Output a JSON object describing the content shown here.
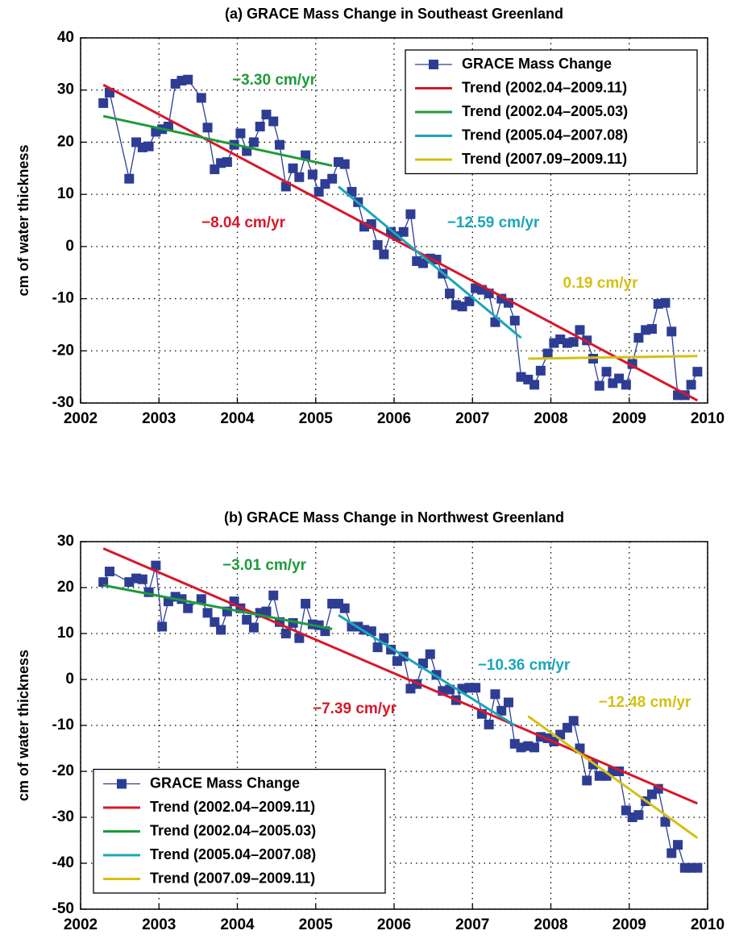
{
  "chart_data": [
    {
      "type": "line",
      "title": "(a) GRACE Mass Change in Southeast Greenland",
      "ylabel": "cm of water thickness",
      "xlim": [
        2002,
        2010
      ],
      "xticks": [
        2002,
        2003,
        2004,
        2005,
        2006,
        2007,
        2008,
        2009,
        2010
      ],
      "ylim": [
        -30,
        40
      ],
      "yticks": [
        -30,
        -20,
        -10,
        0,
        10,
        20,
        30,
        40
      ],
      "grid": true,
      "legend": "upper right",
      "series": [
        {
          "name": "GRACE Mass Change",
          "color": "#2e3d94",
          "marker": "square",
          "x": [
            2002.29,
            2002.37,
            2002.62,
            2002.71,
            2002.79,
            2002.87,
            2002.96,
            2003.04,
            2003.12,
            2003.21,
            2003.29,
            2003.37,
            2003.54,
            2003.62,
            2003.71,
            2003.79,
            2003.87,
            2003.96,
            2004.04,
            2004.12,
            2004.21,
            2004.29,
            2004.37,
            2004.46,
            2004.54,
            2004.62,
            2004.71,
            2004.79,
            2004.87,
            2004.96,
            2005.04,
            2005.12,
            2005.21,
            2005.29,
            2005.37,
            2005.46,
            2005.54,
            2005.62,
            2005.71,
            2005.79,
            2005.87,
            2005.96,
            2006.04,
            2006.12,
            2006.21,
            2006.29,
            2006.37,
            2006.46,
            2006.54,
            2006.62,
            2006.71,
            2006.79,
            2006.87,
            2006.96,
            2007.04,
            2007.12,
            2007.21,
            2007.29,
            2007.37,
            2007.46,
            2007.54,
            2007.62,
            2007.71,
            2007.79,
            2007.87,
            2007.96,
            2008.04,
            2008.12,
            2008.21,
            2008.29,
            2008.37,
            2008.46,
            2008.54,
            2008.62,
            2008.71,
            2008.79,
            2008.87,
            2008.96,
            2009.04,
            2009.12,
            2009.21,
            2009.29,
            2009.37,
            2009.46,
            2009.54,
            2009.62,
            2009.71,
            2009.79,
            2009.87
          ],
          "values": [
            27.5,
            29.5,
            13,
            20,
            19,
            19.2,
            22,
            22.5,
            23,
            31.2,
            31.8,
            32,
            28.5,
            22.8,
            14.8,
            16,
            16.2,
            19.5,
            21.7,
            18.3,
            20,
            23,
            25.3,
            24,
            19.5,
            11.5,
            15,
            13.3,
            17.5,
            13.8,
            10.5,
            12,
            13,
            16.2,
            15.8,
            10.5,
            8.5,
            3.8,
            4.3,
            0.3,
            -1.5,
            2.8,
            2,
            2.8,
            6.2,
            -2.8,
            -3.2,
            -2.3,
            -2.5,
            -5.2,
            -9,
            -11.2,
            -11.5,
            -10.5,
            -8,
            -8.3,
            -9,
            -14.5,
            -10,
            -10.8,
            -14.2,
            -25,
            -25.5,
            -26.5,
            -23.8,
            -20.5,
            -18.5,
            -17.8,
            -18.5,
            -18.3,
            -16,
            -18,
            -21.5,
            -26.7,
            -24,
            -26.2,
            -25.3,
            -26.5,
            -22.5,
            -17.5,
            -16,
            -15.8,
            -11,
            -10.8,
            -16.3,
            -28.5,
            -28.5,
            -26.5,
            -24
          ]
        },
        {
          "name": "Trend (2002.04–2009.11)",
          "color": "#d7182a",
          "x": [
            2002.29,
            2009.87
          ],
          "values": [
            31,
            -29.5
          ]
        },
        {
          "name": "Trend (2002.04–2005.03)",
          "color": "#1e9b3a",
          "x": [
            2002.29,
            2005.21
          ],
          "values": [
            25,
            15.5
          ]
        },
        {
          "name": "Trend (2005.04–2007.08)",
          "color": "#1aa7b8",
          "x": [
            2005.29,
            2007.62
          ],
          "values": [
            11.5,
            -17.5
          ]
        },
        {
          "name": "Trend (2007.09–2009.11)",
          "color": "#d4c012",
          "x": [
            2007.71,
            2009.87
          ],
          "values": [
            -21.5,
            -21
          ]
        }
      ],
      "annotations": [
        {
          "text": "−3.30 cm/yr",
          "color": "#1e9b3a"
        },
        {
          "text": "−8.04 cm/yr",
          "color": "#d7182a"
        },
        {
          "text": "−12.59 cm/yr",
          "color": "#1aa7b8"
        },
        {
          "text": "0.19 cm/yr",
          "color": "#d4c012"
        }
      ]
    },
    {
      "type": "line",
      "title": "(b) GRACE Mass Change in Northwest Greenland",
      "ylabel": "cm of water thickness",
      "xlim": [
        2002,
        2010
      ],
      "xticks": [
        2002,
        2003,
        2004,
        2005,
        2006,
        2007,
        2008,
        2009,
        2010
      ],
      "ylim": [
        -50,
        30
      ],
      "yticks": [
        -50,
        -40,
        -30,
        -20,
        -10,
        0,
        10,
        20,
        30
      ],
      "grid": true,
      "legend": "lower left",
      "series": [
        {
          "name": "GRACE Mass Change",
          "color": "#2e3d94",
          "marker": "square",
          "x": [
            2002.29,
            2002.37,
            2002.62,
            2002.71,
            2002.79,
            2002.87,
            2002.96,
            2003.04,
            2003.12,
            2003.21,
            2003.29,
            2003.37,
            2003.54,
            2003.62,
            2003.71,
            2003.79,
            2003.87,
            2003.96,
            2004.04,
            2004.12,
            2004.21,
            2004.29,
            2004.37,
            2004.46,
            2004.54,
            2004.62,
            2004.71,
            2004.79,
            2004.87,
            2004.96,
            2005.04,
            2005.12,
            2005.21,
            2005.29,
            2005.37,
            2005.46,
            2005.54,
            2005.62,
            2005.71,
            2005.79,
            2005.87,
            2005.96,
            2006.04,
            2006.12,
            2006.21,
            2006.29,
            2006.37,
            2006.46,
            2006.54,
            2006.62,
            2006.71,
            2006.79,
            2006.87,
            2006.96,
            2007.04,
            2007.12,
            2007.21,
            2007.29,
            2007.37,
            2007.46,
            2007.54,
            2007.62,
            2007.71,
            2007.79,
            2007.87,
            2007.96,
            2008.04,
            2008.12,
            2008.21,
            2008.29,
            2008.37,
            2008.46,
            2008.54,
            2008.62,
            2008.71,
            2008.79,
            2008.87,
            2008.96,
            2009.04,
            2009.12,
            2009.21,
            2009.29,
            2009.37,
            2009.46,
            2009.54,
            2009.62,
            2009.71,
            2009.79,
            2009.87
          ],
          "values": [
            21.2,
            23.5,
            21.2,
            22,
            21.8,
            19,
            24.8,
            11.5,
            17,
            18,
            17.5,
            15.5,
            17.5,
            14.5,
            12.5,
            10.8,
            14.8,
            17,
            15.5,
            13,
            11.3,
            14.5,
            14.8,
            18.3,
            12.5,
            10,
            12.3,
            9,
            16.5,
            12,
            11.8,
            10.5,
            16.5,
            16.5,
            15.5,
            11.5,
            11.5,
            10.8,
            10.5,
            7,
            9,
            6.5,
            4,
            5,
            -2,
            -1,
            3.5,
            5.5,
            1,
            -2.5,
            -2.2,
            -4.5,
            -2,
            -1.8,
            -1.8,
            -7.5,
            -9.8,
            -3.2,
            -6.8,
            -5,
            -14,
            -14.8,
            -14.5,
            -14.8,
            -12.5,
            -12.8,
            -13.5,
            -12,
            -10.5,
            -9,
            -15,
            -22,
            -18.5,
            -21,
            -21,
            -20,
            -20,
            -28.5,
            -30,
            -29.5,
            -26.5,
            -25,
            -23.8,
            -31,
            -37.8,
            -36,
            -41,
            -41,
            -41
          ]
        },
        {
          "name": "Trend (2002.04–2009.11)",
          "color": "#d7182a",
          "x": [
            2002.29,
            2009.87
          ],
          "values": [
            28.5,
            -27
          ]
        },
        {
          "name": "Trend (2002.04–2005.03)",
          "color": "#1e9b3a",
          "x": [
            2002.29,
            2005.21
          ],
          "values": [
            20.5,
            11
          ]
        },
        {
          "name": "Trend (2005.04–2007.08)",
          "color": "#1aa7b8",
          "x": [
            2005.29,
            2007.54
          ],
          "values": [
            14,
            -10
          ]
        },
        {
          "name": "Trend (2007.09–2009.11)",
          "color": "#d4c012",
          "x": [
            2007.71,
            2009.87
          ],
          "values": [
            -8,
            -34.5
          ]
        }
      ],
      "annotations": [
        {
          "text": "−3.01 cm/yr",
          "color": "#1e9b3a"
        },
        {
          "text": "−10.36 cm/yr",
          "color": "#1aa7b8"
        },
        {
          "text": "−7.39 cm/yr",
          "color": "#d7182a"
        },
        {
          "text": "−12.48 cm/yr",
          "color": "#d4c012"
        }
      ]
    }
  ]
}
